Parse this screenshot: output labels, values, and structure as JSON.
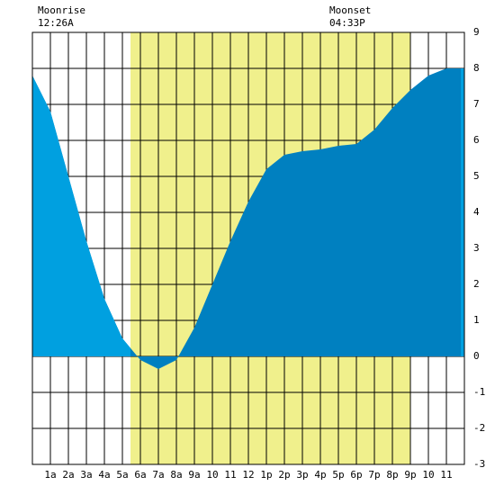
{
  "chart_data": {
    "type": "area",
    "annotations": [
      {
        "title": "Moonrise",
        "time": "12:26A"
      },
      {
        "title": "Moonset",
        "time": "04:33P"
      }
    ],
    "x": [
      0,
      1,
      2,
      3,
      4,
      5,
      6,
      7,
      8,
      9,
      10,
      11,
      12,
      13,
      14,
      15,
      16,
      17,
      18,
      19,
      20,
      21,
      22,
      23,
      24
    ],
    "values": [
      7.8,
      6.8,
      5.0,
      3.2,
      1.6,
      0.5,
      -0.1,
      -0.35,
      -0.1,
      0.8,
      2.0,
      3.2,
      4.3,
      5.2,
      5.6,
      5.7,
      5.75,
      5.85,
      5.9,
      6.3,
      6.9,
      7.4,
      7.8,
      8.0,
      8.0
    ],
    "color": "#0080c0",
    "night_color": "#00a0e0",
    "daylight": [
      5.45,
      21
    ],
    "daylight_color": "#f0f08c",
    "xlim": [
      0,
      24
    ],
    "xticks": [
      {
        "value": 1,
        "label": "1a"
      },
      {
        "value": 2,
        "label": "2a"
      },
      {
        "value": 3,
        "label": "3a"
      },
      {
        "value": 4,
        "label": "4a"
      },
      {
        "value": 5,
        "label": "5a"
      },
      {
        "value": 6,
        "label": "6a"
      },
      {
        "value": 7,
        "label": "7a"
      },
      {
        "value": 8,
        "label": "8a"
      },
      {
        "value": 9,
        "label": "9a"
      },
      {
        "value": 10,
        "label": "10"
      },
      {
        "value": 11,
        "label": "11"
      },
      {
        "value": 12,
        "label": "12"
      },
      {
        "value": 13,
        "label": "1p"
      },
      {
        "value": 14,
        "label": "2p"
      },
      {
        "value": 15,
        "label": "3p"
      },
      {
        "value": 16,
        "label": "4p"
      },
      {
        "value": 17,
        "label": "5p"
      },
      {
        "value": 18,
        "label": "6p"
      },
      {
        "value": 19,
        "label": "7p"
      },
      {
        "value": 20,
        "label": "8p"
      },
      {
        "value": 21,
        "label": "9p"
      },
      {
        "value": 22,
        "label": "10"
      },
      {
        "value": 23,
        "label": "11"
      }
    ],
    "ylim": [
      -3,
      9
    ],
    "yticks": [
      -3,
      -2,
      -1,
      0,
      1,
      2,
      3,
      4,
      5,
      6,
      7,
      8,
      9
    ],
    "grid": true
  }
}
